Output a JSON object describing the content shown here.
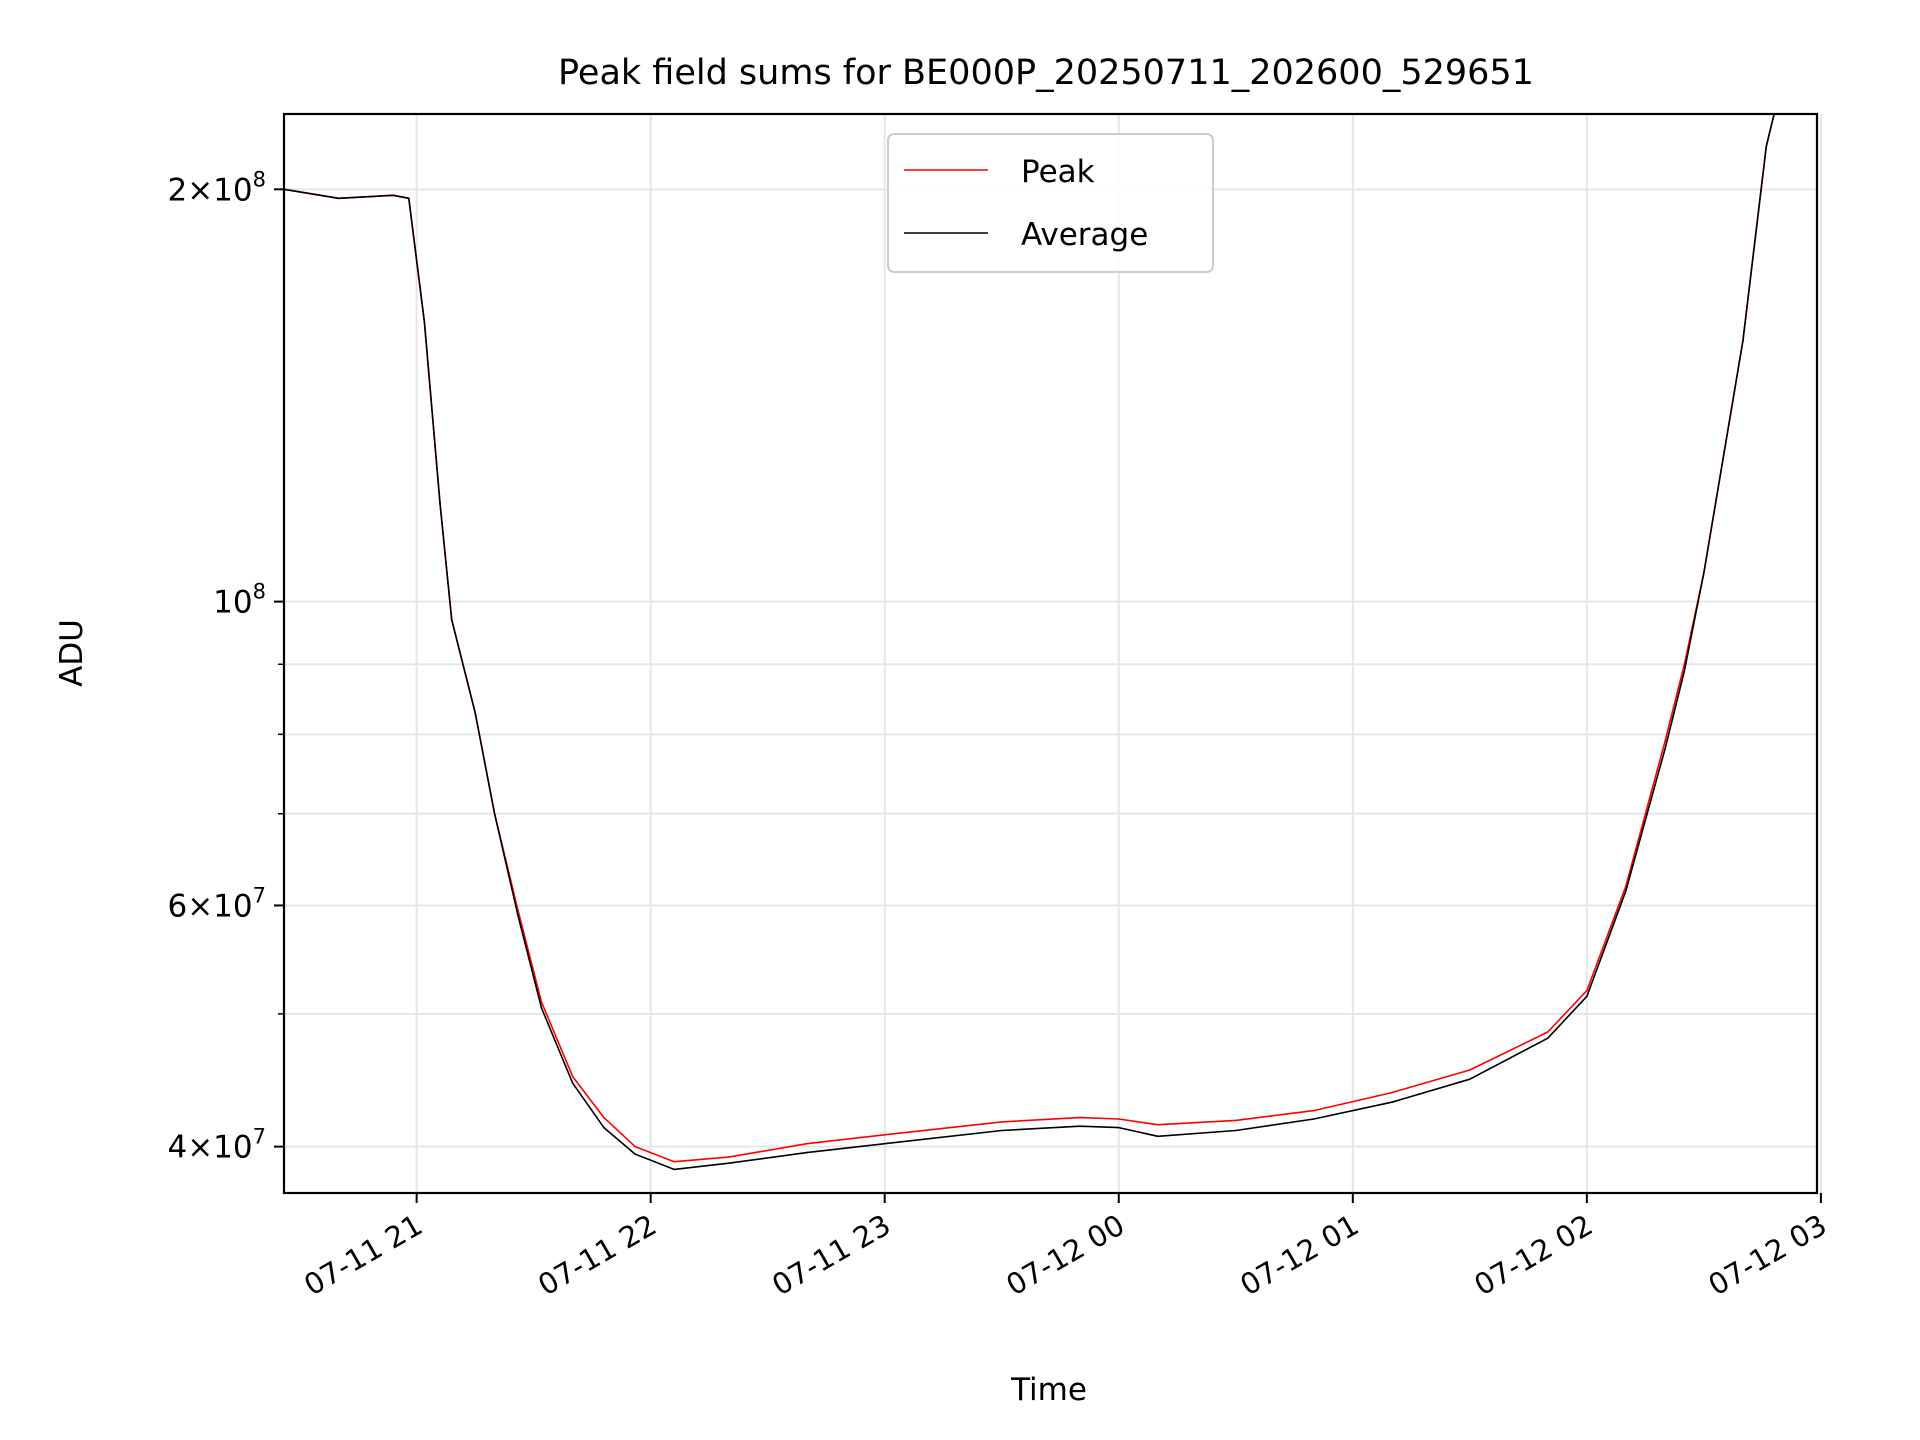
{
  "chart_data": {
    "type": "line",
    "title": "Peak field sums for BE000P_20250711_202600_529651",
    "xlabel": "Time",
    "ylabel": "ADU",
    "yscale": "log",
    "ylim": [
      37000000,
      227000000
    ],
    "xlim": [
      "2025-07-11T20:26:00",
      "2025-07-12T02:59:00"
    ],
    "grid": true,
    "legend": "upper center",
    "x_ticks": [
      {
        "t": "2025-07-11T21:00:00",
        "label": "07-11 21"
      },
      {
        "t": "2025-07-11T22:00:00",
        "label": "07-11 22"
      },
      {
        "t": "2025-07-11T23:00:00",
        "label": "07-11 23"
      },
      {
        "t": "2025-07-12T00:00:00",
        "label": "07-12 00"
      },
      {
        "t": "2025-07-12T01:00:00",
        "label": "07-12 01"
      },
      {
        "t": "2025-07-12T02:00:00",
        "label": "07-12 02"
      },
      {
        "t": "2025-07-12T03:00:00",
        "label": "07-12 03"
      }
    ],
    "y_ticks_major": [
      {
        "v": 200000000,
        "mant": "2",
        "exp": "8"
      },
      {
        "v": 100000000,
        "mant": "",
        "exp": "8"
      },
      {
        "v": 60000000,
        "mant": "6",
        "exp": "7"
      },
      {
        "v": 40000000,
        "mant": "4",
        "exp": "7"
      }
    ],
    "y_ticks_minor": [
      90000000,
      80000000,
      70000000,
      50000000
    ],
    "series": [
      {
        "name": "Peak",
        "color": "#ff0000",
        "points": [
          [
            "2025-07-11T20:26:00",
            200000000
          ],
          [
            "2025-07-11T20:40:00",
            197000000
          ],
          [
            "2025-07-11T20:54:00",
            198000000
          ],
          [
            "2025-07-11T20:58:00",
            197000000
          ],
          [
            "2025-07-11T21:02:00",
            160000000
          ],
          [
            "2025-07-11T21:06:00",
            118000000
          ],
          [
            "2025-07-11T21:09:00",
            97000000
          ],
          [
            "2025-07-11T21:15:00",
            83000000
          ],
          [
            "2025-07-11T21:20:00",
            70000000
          ],
          [
            "2025-07-11T21:26:00",
            59500000
          ],
          [
            "2025-07-11T21:32:00",
            51000000
          ],
          [
            "2025-07-11T21:40:00",
            45000000
          ],
          [
            "2025-07-11T21:48:00",
            42000000
          ],
          [
            "2025-07-11T21:56:00",
            40000000
          ],
          [
            "2025-07-11T22:06:00",
            39000000
          ],
          [
            "2025-07-11T22:20:00",
            39300000
          ],
          [
            "2025-07-11T22:40:00",
            40200000
          ],
          [
            "2025-07-11T23:00:00",
            40800000
          ],
          [
            "2025-07-11T23:30:00",
            41700000
          ],
          [
            "2025-07-11T23:50:00",
            42000000
          ],
          [
            "2025-07-12T00:00:00",
            41900000
          ],
          [
            "2025-07-12T00:10:00",
            41500000
          ],
          [
            "2025-07-12T00:30:00",
            41800000
          ],
          [
            "2025-07-12T00:50:00",
            42500000
          ],
          [
            "2025-07-12T01:10:00",
            43800000
          ],
          [
            "2025-07-12T01:30:00",
            45500000
          ],
          [
            "2025-07-12T01:50:00",
            48500000
          ],
          [
            "2025-07-12T02:00:00",
            52000000
          ],
          [
            "2025-07-12T02:10:00",
            62000000
          ],
          [
            "2025-07-12T02:20:00",
            79000000
          ],
          [
            "2025-07-12T02:25:00",
            90000000
          ],
          [
            "2025-07-12T02:30:00",
            105000000
          ],
          [
            "2025-07-12T02:40:00",
            155000000
          ],
          [
            "2025-07-12T02:46:00",
            215000000
          ],
          [
            "2025-07-12T02:48:00",
            227000000
          ]
        ]
      },
      {
        "name": "Average",
        "color": "#000000",
        "points": [
          [
            "2025-07-11T20:26:00",
            200000000
          ],
          [
            "2025-07-11T20:40:00",
            197000000
          ],
          [
            "2025-07-11T20:54:00",
            198000000
          ],
          [
            "2025-07-11T20:58:00",
            197000000
          ],
          [
            "2025-07-11T21:02:00",
            160000000
          ],
          [
            "2025-07-11T21:06:00",
            118000000
          ],
          [
            "2025-07-11T21:09:00",
            97000000
          ],
          [
            "2025-07-11T21:15:00",
            83000000
          ],
          [
            "2025-07-11T21:20:00",
            70000000
          ],
          [
            "2025-07-11T21:26:00",
            59000000
          ],
          [
            "2025-07-11T21:32:00",
            50500000
          ],
          [
            "2025-07-11T21:40:00",
            44500000
          ],
          [
            "2025-07-11T21:48:00",
            41300000
          ],
          [
            "2025-07-11T21:56:00",
            39500000
          ],
          [
            "2025-07-11T22:06:00",
            38500000
          ],
          [
            "2025-07-11T22:20:00",
            38900000
          ],
          [
            "2025-07-11T22:40:00",
            39600000
          ],
          [
            "2025-07-11T23:00:00",
            40200000
          ],
          [
            "2025-07-11T23:30:00",
            41100000
          ],
          [
            "2025-07-11T23:50:00",
            41400000
          ],
          [
            "2025-07-12T00:00:00",
            41300000
          ],
          [
            "2025-07-12T00:10:00",
            40700000
          ],
          [
            "2025-07-12T00:30:00",
            41100000
          ],
          [
            "2025-07-12T00:50:00",
            41900000
          ],
          [
            "2025-07-12T01:10:00",
            43100000
          ],
          [
            "2025-07-12T01:30:00",
            44800000
          ],
          [
            "2025-07-12T01:50:00",
            48000000
          ],
          [
            "2025-07-12T02:00:00",
            51500000
          ],
          [
            "2025-07-12T02:10:00",
            61500000
          ],
          [
            "2025-07-12T02:20:00",
            78000000
          ],
          [
            "2025-07-12T02:25:00",
            89000000
          ],
          [
            "2025-07-12T02:30:00",
            105000000
          ],
          [
            "2025-07-12T02:40:00",
            155000000
          ],
          [
            "2025-07-12T02:46:00",
            215000000
          ],
          [
            "2025-07-12T02:48:00",
            227000000
          ]
        ]
      }
    ]
  }
}
